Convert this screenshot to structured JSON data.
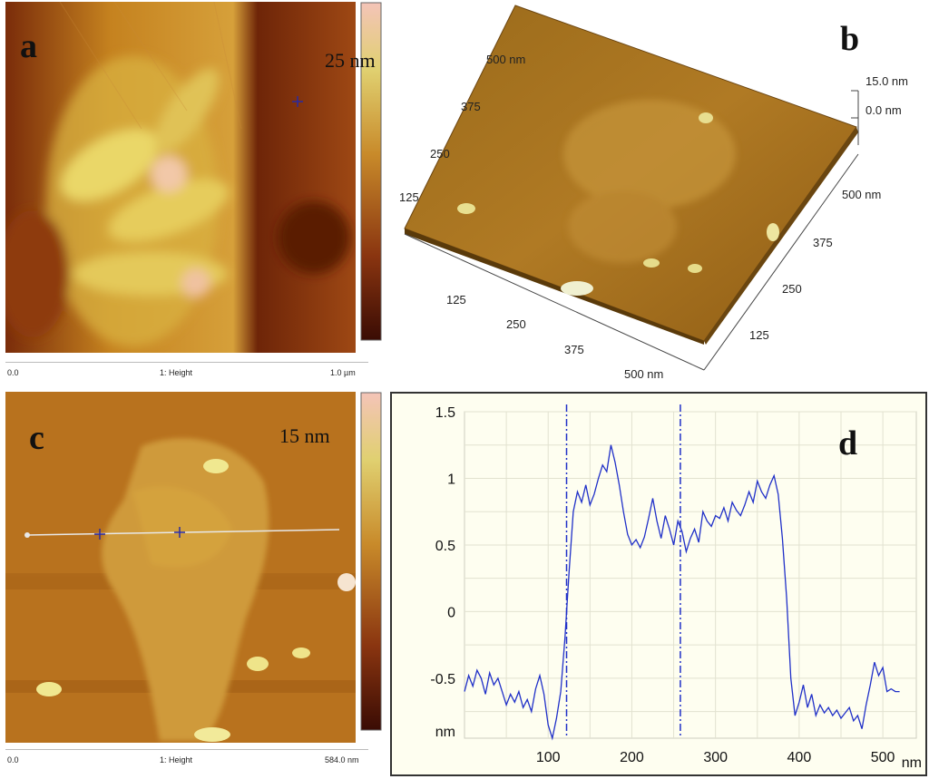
{
  "panels": {
    "a": {
      "letter": "a",
      "scale_max": "25 nm",
      "footer": {
        "left": "0.0",
        "center": "1: Height",
        "right": "1.0 µm"
      }
    },
    "b": {
      "letter": "b",
      "z_top": "15.0 nm",
      "z_zero": "0.0 nm",
      "x_ticks": [
        "125",
        "250",
        "375",
        "500 nm"
      ],
      "y_ticks": [
        "125",
        "250",
        "375",
        "500 nm"
      ],
      "back_ticks": [
        "125",
        "250",
        "375",
        "500 nm"
      ]
    },
    "c": {
      "letter": "c",
      "scale_max": "15 nm",
      "footer": {
        "left": "0.0",
        "center": "1: Height",
        "right": "584.0 nm"
      }
    },
    "d": {
      "letter": "d"
    }
  },
  "colors": {
    "afm_dark": "#4a1506",
    "afm_mid": "#b8651a",
    "afm_light": "#e8d06a",
    "profile_line": "#2030c8",
    "plot_bg": "#fefef0"
  },
  "chart_data": {
    "type": "line",
    "title": "",
    "xlabel": "nm",
    "ylabel": "nm",
    "xlim": [
      0,
      540
    ],
    "ylim": [
      -0.95,
      1.5
    ],
    "x_ticks": [
      100,
      200,
      300,
      400,
      500
    ],
    "y_ticks": [
      1.5,
      1,
      0.5,
      0,
      -0.5
    ],
    "y_tick_labels": [
      "1.5",
      "1",
      "0.5",
      "0",
      "-0.5"
    ],
    "x_tick_labels": [
      "100",
      "200",
      "300",
      "400",
      "500"
    ],
    "markers_x": [
      122,
      258
    ],
    "grid": true,
    "series": [
      {
        "x": [
          0,
          5,
          10,
          15,
          20,
          25,
          30,
          35,
          40,
          45,
          50,
          55,
          60,
          65,
          70,
          75,
          80,
          85,
          90,
          95,
          100,
          105,
          110,
          115,
          120,
          125,
          130,
          135,
          140,
          145,
          150,
          155,
          160,
          165,
          170,
          175,
          180,
          185,
          190,
          195,
          200,
          205,
          210,
          215,
          220,
          225,
          230,
          235,
          240,
          245,
          250,
          255,
          260,
          265,
          270,
          275,
          280,
          285,
          290,
          295,
          300,
          305,
          310,
          315,
          320,
          325,
          330,
          335,
          340,
          345,
          350,
          355,
          360,
          365,
          370,
          375,
          380,
          385,
          390,
          395,
          400,
          405,
          410,
          415,
          420,
          425,
          430,
          435,
          440,
          445,
          450,
          455,
          460,
          465,
          470,
          475,
          480,
          485,
          490,
          495,
          500,
          505,
          510,
          515,
          520
        ],
        "values": [
          -0.6,
          -0.48,
          -0.56,
          -0.44,
          -0.5,
          -0.62,
          -0.46,
          -0.55,
          -0.5,
          -0.6,
          -0.7,
          -0.62,
          -0.68,
          -0.6,
          -0.72,
          -0.66,
          -0.75,
          -0.58,
          -0.48,
          -0.62,
          -0.85,
          -0.95,
          -0.8,
          -0.6,
          -0.2,
          0.3,
          0.75,
          0.9,
          0.82,
          0.95,
          0.8,
          0.88,
          1.0,
          1.1,
          1.05,
          1.25,
          1.12,
          0.95,
          0.75,
          0.58,
          0.5,
          0.54,
          0.48,
          0.56,
          0.7,
          0.85,
          0.68,
          0.55,
          0.72,
          0.62,
          0.5,
          0.68,
          0.6,
          0.45,
          0.55,
          0.62,
          0.52,
          0.75,
          0.68,
          0.64,
          0.72,
          0.7,
          0.78,
          0.68,
          0.82,
          0.76,
          0.72,
          0.8,
          0.9,
          0.82,
          0.98,
          0.9,
          0.85,
          0.95,
          1.02,
          0.88,
          0.55,
          0.1,
          -0.5,
          -0.78,
          -0.68,
          -0.55,
          -0.72,
          -0.62,
          -0.78,
          -0.7,
          -0.76,
          -0.72,
          -0.78,
          -0.74,
          -0.8,
          -0.76,
          -0.72,
          -0.82,
          -0.78,
          -0.88,
          -0.7,
          -0.55,
          -0.38,
          -0.48,
          -0.42,
          -0.6,
          -0.58,
          -0.6,
          -0.6
        ]
      }
    ]
  }
}
